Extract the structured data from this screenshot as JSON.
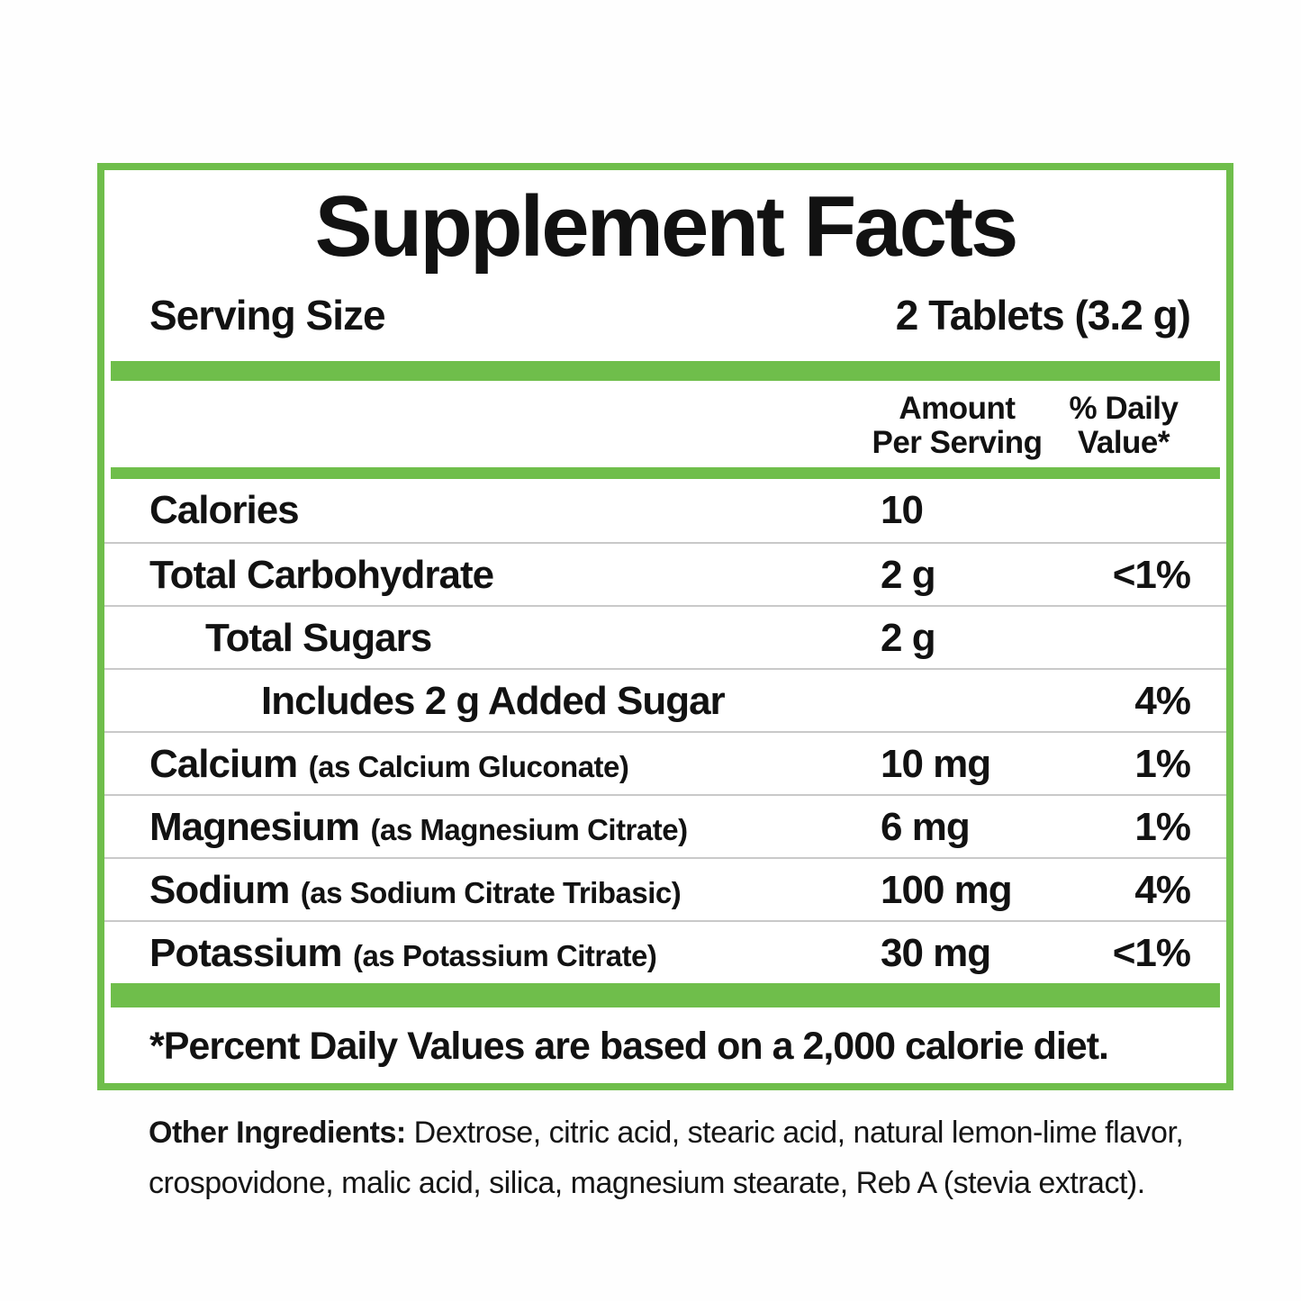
{
  "label": {
    "title": "Supplement Facts",
    "serving": {
      "label": "Serving Size",
      "value": "2 Tablets (3.2 g)"
    },
    "columns": {
      "amount_line1": "Amount",
      "amount_line2": "Per Serving",
      "dv_line1": "% Daily",
      "dv_line2": "Value*"
    },
    "rows": [
      {
        "name": "Calories",
        "detail": "",
        "amount": "10",
        "dv": ""
      },
      {
        "name": "Total Carbohydrate",
        "detail": "",
        "amount": "2 g",
        "dv": "<1%"
      },
      {
        "name": "Total Sugars",
        "detail": "",
        "amount": "2 g",
        "dv": ""
      },
      {
        "name": "Includes 2 g Added Sugar",
        "detail": "",
        "amount": "",
        "dv": "4%"
      },
      {
        "name": "Calcium",
        "detail": "(as Calcium Gluconate)",
        "amount": "10 mg",
        "dv": "1%"
      },
      {
        "name": "Magnesium",
        "detail": "(as Magnesium Citrate)",
        "amount": "6 mg",
        "dv": "1%"
      },
      {
        "name": "Sodium",
        "detail": "(as Sodium Citrate Tribasic)",
        "amount": "100 mg",
        "dv": "4%"
      },
      {
        "name": "Potassium",
        "detail": "(as Potassium Citrate)",
        "amount": "30 mg",
        "dv": "<1%"
      }
    ],
    "footnote": "*Percent Daily Values are based on a 2,000 calorie diet.",
    "other_ingredients": {
      "label": "Other Ingredients:",
      "text": " Dextrose, citric acid, stearic acid, natural lemon-lime flavor, crospovidone, malic acid, silica, magnesium stearate, Reb A (stevia extract)."
    }
  },
  "colors": {
    "accent_green": "#6FBE4B",
    "separator_gray": "#C9C9C9",
    "text_black": "#121212"
  }
}
